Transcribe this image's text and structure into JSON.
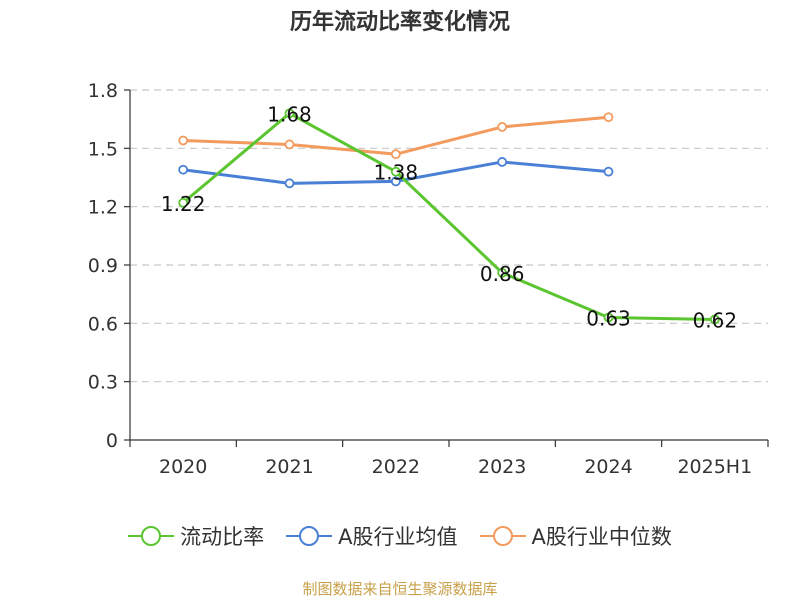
{
  "chart_data": {
    "type": "line",
    "title": "历年流动比率变化情况",
    "categories": [
      "2020",
      "2021",
      "2022",
      "2023",
      "2024",
      "2025H1"
    ],
    "ylim": [
      0,
      1.8
    ],
    "yticks": [
      "0",
      "0.3",
      "0.6",
      "0.9",
      "1.2",
      "1.5",
      "1.8"
    ],
    "grid": true,
    "legend_position": "bottom",
    "series": [
      {
        "name": "流动比率",
        "color": "#5ac52f",
        "values": [
          1.22,
          1.68,
          1.38,
          0.86,
          0.63,
          0.62
        ],
        "labels": [
          "1.22",
          "1.68",
          "1.38",
          "0.86",
          "0.63",
          "0.62"
        ]
      },
      {
        "name": "A股行业均值",
        "color": "#4a7fd6",
        "values": [
          1.39,
          1.32,
          1.33,
          1.43,
          1.38,
          null
        ]
      },
      {
        "name": "A股行业中位数",
        "color": "#f39a5d",
        "values": [
          1.54,
          1.52,
          1.47,
          1.61,
          1.66,
          null
        ]
      }
    ]
  },
  "source_text": "制图数据来自恒生聚源数据库"
}
